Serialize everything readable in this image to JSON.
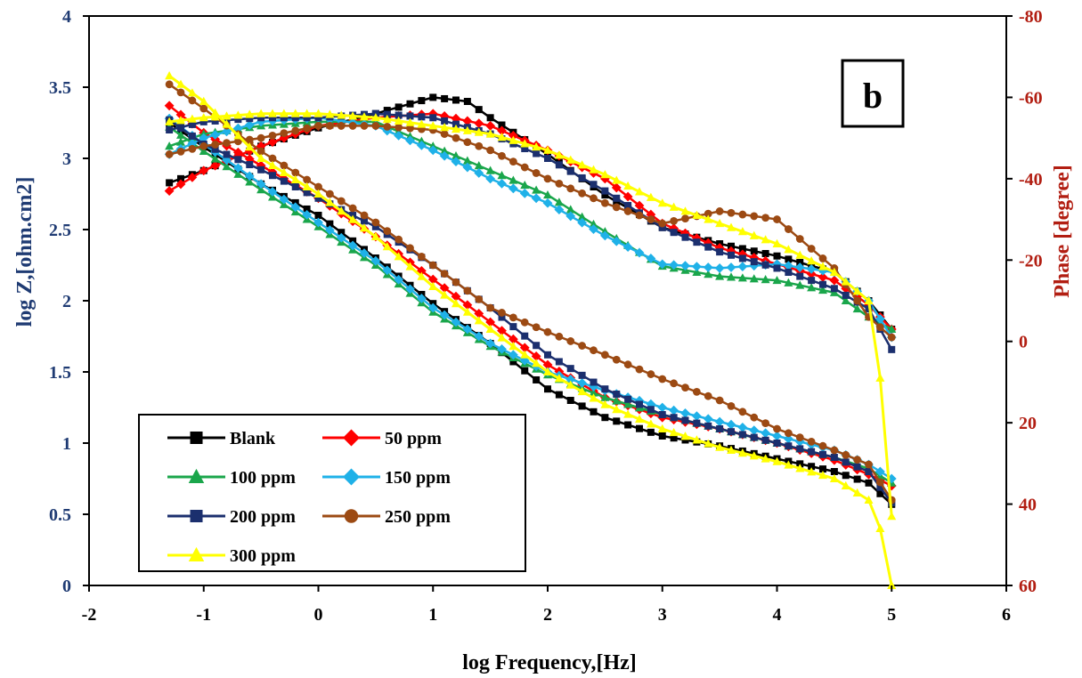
{
  "chart_data": {
    "type": "line",
    "panel_label": "b",
    "xlabel": "log Frequency,[Hz]",
    "ylabel": "log Z,[ohm.cm2]",
    "y2label": "Phase [degree]",
    "xlim": [
      -2,
      6
    ],
    "ylim": [
      0,
      4
    ],
    "y2lim": [
      60,
      -80
    ],
    "y2_inverted": true,
    "grid": false,
    "legend_position": "bottom-left",
    "x_ticks": [
      "-2",
      "-1",
      "0",
      "1",
      "2",
      "3",
      "4",
      "5",
      "6"
    ],
    "y_ticks": [
      "0",
      "0.5",
      "1",
      "1.5",
      "2",
      "2.5",
      "3",
      "3.5",
      "4"
    ],
    "y2_ticks": [
      "60",
      "40",
      "20",
      "0",
      "-20",
      "-40",
      "-60",
      "-80"
    ],
    "colors": {
      "left_axis": "#1f3b73",
      "right_axis": "#b21e12"
    },
    "series": [
      {
        "name": "Blank",
        "color": "#000000",
        "marker": "square",
        "logZ": [
          [
            -1.3,
            3.25
          ],
          [
            -1,
            3.08
          ],
          [
            -0.5,
            2.82
          ],
          [
            0,
            2.6
          ],
          [
            0.5,
            2.3
          ],
          [
            1,
            1.98
          ],
          [
            1.5,
            1.7
          ],
          [
            2,
            1.38
          ],
          [
            2.5,
            1.18
          ],
          [
            3,
            1.05
          ],
          [
            3.5,
            0.98
          ],
          [
            4,
            0.89
          ],
          [
            4.5,
            0.8
          ],
          [
            4.8,
            0.72
          ],
          [
            5,
            0.57
          ]
        ],
        "phase": [
          [
            -1.3,
            -39
          ],
          [
            -1,
            -42
          ],
          [
            -0.5,
            -48
          ],
          [
            0,
            -52.5
          ],
          [
            0.5,
            -56
          ],
          [
            1,
            -60
          ],
          [
            1.3,
            -59
          ],
          [
            1.5,
            -55
          ],
          [
            2,
            -46
          ],
          [
            2.5,
            -36
          ],
          [
            3,
            -28
          ],
          [
            3.5,
            -24
          ],
          [
            4,
            -21
          ],
          [
            4.5,
            -17
          ],
          [
            4.8,
            -10
          ],
          [
            5,
            -3
          ]
        ]
      },
      {
        "name": "50 ppm",
        "color": "#ff0000",
        "marker": "diamond",
        "logZ": [
          [
            -1.3,
            3.37
          ],
          [
            -1,
            3.18
          ],
          [
            -0.5,
            2.95
          ],
          [
            0,
            2.72
          ],
          [
            0.5,
            2.45
          ],
          [
            1,
            2.15
          ],
          [
            1.5,
            1.85
          ],
          [
            2,
            1.55
          ],
          [
            2.5,
            1.32
          ],
          [
            3,
            1.18
          ],
          [
            3.5,
            1.1
          ],
          [
            4,
            1.0
          ],
          [
            4.5,
            0.88
          ],
          [
            4.8,
            0.78
          ],
          [
            5,
            0.7
          ]
        ],
        "phase": [
          [
            -1.3,
            -37
          ],
          [
            -1,
            -42
          ],
          [
            -0.5,
            -48
          ],
          [
            0,
            -53
          ],
          [
            0.5,
            -55
          ],
          [
            1,
            -56
          ],
          [
            1.5,
            -53
          ],
          [
            2,
            -47
          ],
          [
            2.5,
            -40
          ],
          [
            3,
            -29
          ],
          [
            3.5,
            -23
          ],
          [
            4,
            -19
          ],
          [
            4.5,
            -15
          ],
          [
            4.8,
            -9
          ],
          [
            5,
            -3
          ]
        ]
      },
      {
        "name": "100 ppm",
        "color": "#1aa64b",
        "marker": "triangle",
        "logZ": [
          [
            -1.3,
            3.22
          ],
          [
            -1,
            3.05
          ],
          [
            -0.5,
            2.78
          ],
          [
            0,
            2.52
          ],
          [
            0.5,
            2.25
          ],
          [
            1,
            1.92
          ],
          [
            1.5,
            1.68
          ],
          [
            2,
            1.48
          ],
          [
            2.5,
            1.32
          ],
          [
            3,
            1.2
          ],
          [
            3.5,
            1.1
          ],
          [
            4,
            1.0
          ],
          [
            4.5,
            0.9
          ],
          [
            4.8,
            0.82
          ],
          [
            5,
            0.72
          ]
        ],
        "phase": [
          [
            -1.3,
            -48
          ],
          [
            -1,
            -51
          ],
          [
            -0.5,
            -53
          ],
          [
            0,
            -54
          ],
          [
            0.5,
            -54
          ],
          [
            1,
            -48
          ],
          [
            1.5,
            -42
          ],
          [
            2,
            -36
          ],
          [
            2.5,
            -27
          ],
          [
            3,
            -18.5
          ],
          [
            3.5,
            -16
          ],
          [
            4,
            -15
          ],
          [
            4.5,
            -12
          ],
          [
            4.8,
            -6
          ],
          [
            5,
            -3
          ]
        ]
      },
      {
        "name": "150 ppm",
        "color": "#1fb1e8",
        "marker": "diamond",
        "logZ": [
          [
            -1.3,
            3.28
          ],
          [
            -1,
            3.1
          ],
          [
            -0.5,
            2.82
          ],
          [
            0,
            2.55
          ],
          [
            0.5,
            2.28
          ],
          [
            1,
            1.95
          ],
          [
            1.5,
            1.7
          ],
          [
            2,
            1.5
          ],
          [
            2.5,
            1.37
          ],
          [
            3,
            1.25
          ],
          [
            3.5,
            1.15
          ],
          [
            4,
            1.05
          ],
          [
            4.5,
            0.95
          ],
          [
            4.8,
            0.85
          ],
          [
            5,
            0.75
          ]
        ],
        "phase": [
          [
            -1.3,
            -46
          ],
          [
            -1,
            -50
          ],
          [
            -0.5,
            -54
          ],
          [
            0,
            -55
          ],
          [
            0.5,
            -53
          ],
          [
            1,
            -47
          ],
          [
            1.5,
            -40
          ],
          [
            2,
            -34
          ],
          [
            2.5,
            -26
          ],
          [
            3,
            -19
          ],
          [
            3.5,
            -18
          ],
          [
            4,
            -19
          ],
          [
            4.5,
            -17
          ],
          [
            4.8,
            -10
          ],
          [
            5,
            -1
          ]
        ]
      },
      {
        "name": "200 ppm",
        "color": "#1b2f6e",
        "marker": "square",
        "logZ": [
          [
            -1.3,
            3.27
          ],
          [
            -1,
            3.1
          ],
          [
            -0.5,
            2.92
          ],
          [
            0,
            2.72
          ],
          [
            0.5,
            2.52
          ],
          [
            1,
            2.25
          ],
          [
            1.5,
            1.95
          ],
          [
            2,
            1.62
          ],
          [
            2.5,
            1.38
          ],
          [
            3,
            1.2
          ],
          [
            3.5,
            1.1
          ],
          [
            4,
            1.0
          ],
          [
            4.5,
            0.9
          ],
          [
            4.8,
            0.8
          ],
          [
            5,
            0.58
          ]
        ],
        "phase": [
          [
            -1.3,
            -52
          ],
          [
            -1,
            -54
          ],
          [
            -0.5,
            -55
          ],
          [
            0,
            -55
          ],
          [
            0.5,
            -56
          ],
          [
            1,
            -55
          ],
          [
            1.5,
            -51
          ],
          [
            2,
            -45
          ],
          [
            2.5,
            -37
          ],
          [
            3,
            -28
          ],
          [
            3.5,
            -22
          ],
          [
            4,
            -18
          ],
          [
            4.5,
            -13
          ],
          [
            4.8,
            -8
          ],
          [
            5,
            2
          ]
        ]
      },
      {
        "name": "250 ppm",
        "color": "#9c4a13",
        "marker": "circle",
        "logZ": [
          [
            -1.3,
            3.52
          ],
          [
            -1,
            3.35
          ],
          [
            -0.5,
            3.05
          ],
          [
            0,
            2.8
          ],
          [
            0.5,
            2.55
          ],
          [
            1,
            2.25
          ],
          [
            1.5,
            1.95
          ],
          [
            2,
            1.78
          ],
          [
            2.5,
            1.62
          ],
          [
            3,
            1.45
          ],
          [
            3.5,
            1.3
          ],
          [
            4,
            1.1
          ],
          [
            4.5,
            0.95
          ],
          [
            4.8,
            0.85
          ],
          [
            5,
            0.6
          ]
        ],
        "phase": [
          [
            -1.3,
            -46
          ],
          [
            -1,
            -48
          ],
          [
            -0.5,
            -50
          ],
          [
            0,
            -53
          ],
          [
            0.5,
            -53
          ],
          [
            1,
            -52
          ],
          [
            1.5,
            -47
          ],
          [
            2,
            -40
          ],
          [
            2.5,
            -34
          ],
          [
            3,
            -29
          ],
          [
            3.5,
            -32
          ],
          [
            4,
            -30
          ],
          [
            4.5,
            -18
          ],
          [
            4.8,
            -6
          ],
          [
            5,
            -1
          ]
        ]
      },
      {
        "name": "300 ppm",
        "color": "#ffff00",
        "marker": "triangle",
        "logZ": [
          [
            -1.3,
            3.58
          ],
          [
            -1,
            3.4
          ],
          [
            -0.5,
            3.0
          ],
          [
            0,
            2.75
          ],
          [
            0.5,
            2.45
          ],
          [
            1,
            2.1
          ],
          [
            1.5,
            1.8
          ],
          [
            2,
            1.5
          ],
          [
            2.5,
            1.27
          ],
          [
            3,
            1.1
          ],
          [
            3.5,
            0.97
          ],
          [
            4,
            0.87
          ],
          [
            4.5,
            0.75
          ],
          [
            4.8,
            0.6
          ],
          [
            4.9,
            0.4
          ],
          [
            5,
            0.0
          ]
        ],
        "phase": [
          [
            -1.3,
            -54
          ],
          [
            -1,
            -55
          ],
          [
            -0.5,
            -56
          ],
          [
            0,
            -56
          ],
          [
            0.5,
            -55
          ],
          [
            1,
            -53
          ],
          [
            1.5,
            -51
          ],
          [
            2,
            -47
          ],
          [
            2.5,
            -41
          ],
          [
            3,
            -34
          ],
          [
            3.5,
            -29
          ],
          [
            4,
            -24
          ],
          [
            4.5,
            -17
          ],
          [
            4.8,
            -10
          ],
          [
            4.9,
            9
          ],
          [
            5,
            43
          ]
        ]
      }
    ]
  }
}
